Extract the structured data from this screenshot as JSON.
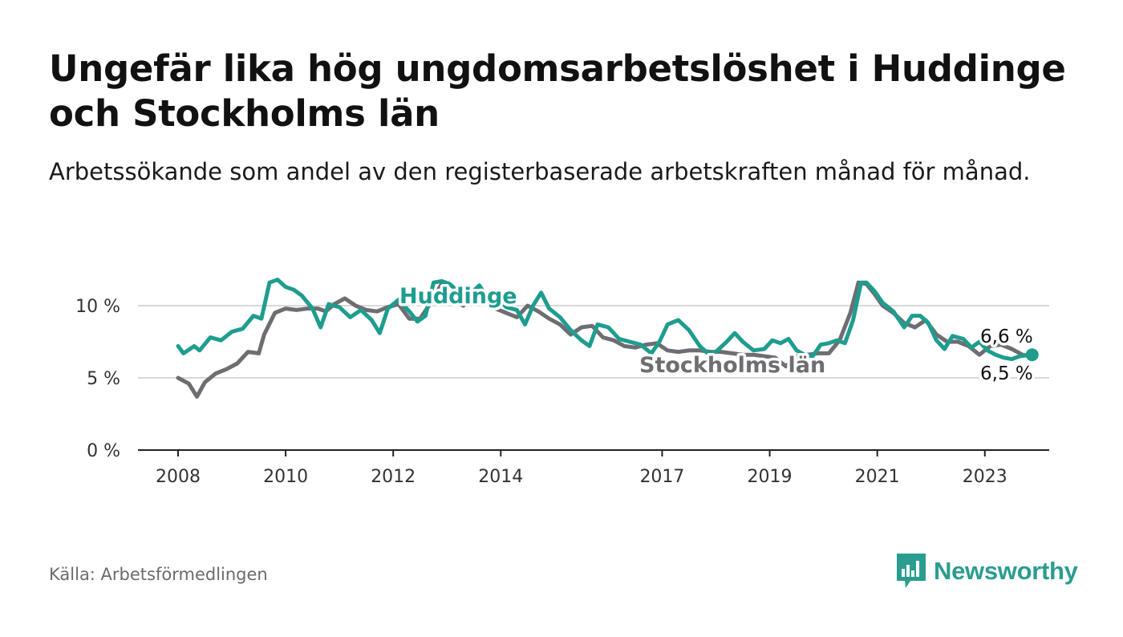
{
  "header": {
    "title": "Ungefär lika hög ungdomsarbetslöshet i Huddinge och Stockholms län",
    "subtitle": "Arbetssökande som andel av den registerbaserade arbetskraften månad för månad."
  },
  "footer": {
    "source": "Källa: Arbetsförmedlingen",
    "brand": "Newsworthy"
  },
  "colors": {
    "huddinge": "#1e9d8f",
    "stockholm": "#6e6d72",
    "grid": "#d9d9d9",
    "axis": "#222222"
  },
  "chart_data": {
    "type": "line",
    "title": "Ungefär lika hög ungdomsarbetslöshet i Huddinge och Stockholms län",
    "xlabel": "",
    "ylabel": "",
    "xlim": [
      2008,
      2024.2
    ],
    "ylim": [
      0,
      12.5
    ],
    "x_ticks": [
      {
        "value": 2008,
        "label": "2008"
      },
      {
        "value": 2010,
        "label": "2010"
      },
      {
        "value": 2012,
        "label": "2012"
      },
      {
        "value": 2014,
        "label": "2014"
      },
      {
        "value": 2017,
        "label": "2017"
      },
      {
        "value": 2019,
        "label": "2019"
      },
      {
        "value": 2021,
        "label": "2021"
      },
      {
        "value": 2023,
        "label": "2023"
      }
    ],
    "y_ticks": [
      {
        "value": 0,
        "label": "0 %"
      },
      {
        "value": 5,
        "label": "5 %"
      },
      {
        "value": 10,
        "label": "10 %"
      }
    ],
    "series": [
      {
        "name": "Stockholms län",
        "label": "Stockholms län",
        "end_label": "6,5 %",
        "points": [
          [
            2008.0,
            5.0
          ],
          [
            2008.2,
            4.6
          ],
          [
            2008.35,
            3.7
          ],
          [
            2008.5,
            4.7
          ],
          [
            2008.7,
            5.3
          ],
          [
            2008.9,
            5.6
          ],
          [
            2009.1,
            6.0
          ],
          [
            2009.3,
            6.8
          ],
          [
            2009.5,
            6.7
          ],
          [
            2009.6,
            8.0
          ],
          [
            2009.8,
            9.5
          ],
          [
            2010.0,
            9.8
          ],
          [
            2010.2,
            9.7
          ],
          [
            2010.4,
            9.8
          ],
          [
            2010.6,
            9.8
          ],
          [
            2010.75,
            9.6
          ],
          [
            2010.9,
            10.1
          ],
          [
            2011.1,
            10.5
          ],
          [
            2011.3,
            10.0
          ],
          [
            2011.5,
            9.7
          ],
          [
            2011.7,
            9.6
          ],
          [
            2011.9,
            9.9
          ],
          [
            2012.1,
            10.1
          ],
          [
            2012.3,
            9.1
          ],
          [
            2012.5,
            9.1
          ],
          [
            2012.7,
            10.2
          ],
          [
            2012.9,
            11.5
          ],
          [
            2013.1,
            10.5
          ],
          [
            2013.3,
            10.0
          ],
          [
            2013.5,
            10.5
          ],
          [
            2013.7,
            10.5
          ],
          [
            2013.9,
            9.8
          ],
          [
            2014.1,
            9.5
          ],
          [
            2014.3,
            9.2
          ],
          [
            2014.5,
            10.0
          ],
          [
            2014.7,
            9.6
          ],
          [
            2014.9,
            9.1
          ],
          [
            2015.1,
            8.7
          ],
          [
            2015.3,
            8.0
          ],
          [
            2015.5,
            8.5
          ],
          [
            2015.7,
            8.6
          ],
          [
            2015.9,
            7.8
          ],
          [
            2016.1,
            7.6
          ],
          [
            2016.3,
            7.2
          ],
          [
            2016.5,
            7.1
          ],
          [
            2016.7,
            7.3
          ],
          [
            2016.9,
            7.4
          ],
          [
            2017.1,
            6.9
          ],
          [
            2017.3,
            6.8
          ],
          [
            2017.5,
            6.9
          ],
          [
            2017.7,
            6.9
          ],
          [
            2017.9,
            6.8
          ],
          [
            2018.1,
            6.8
          ],
          [
            2018.3,
            6.7
          ],
          [
            2018.5,
            6.6
          ],
          [
            2018.7,
            6.6
          ],
          [
            2018.9,
            6.5
          ],
          [
            2019.1,
            6.4
          ],
          [
            2019.3,
            5.8
          ],
          [
            2019.5,
            6.5
          ],
          [
            2019.7,
            6.6
          ],
          [
            2019.9,
            6.7
          ],
          [
            2020.1,
            6.7
          ],
          [
            2020.3,
            7.6
          ],
          [
            2020.5,
            9.5
          ],
          [
            2020.65,
            11.6
          ],
          [
            2020.8,
            11.5
          ],
          [
            2020.95,
            10.8
          ],
          [
            2021.1,
            10.0
          ],
          [
            2021.3,
            9.5
          ],
          [
            2021.5,
            8.8
          ],
          [
            2021.7,
            8.5
          ],
          [
            2021.9,
            9.0
          ],
          [
            2022.1,
            8.0
          ],
          [
            2022.3,
            7.5
          ],
          [
            2022.5,
            7.5
          ],
          [
            2022.7,
            7.2
          ],
          [
            2022.9,
            6.6
          ],
          [
            2023.1,
            7.2
          ],
          [
            2023.3,
            7.3
          ],
          [
            2023.5,
            7.0
          ],
          [
            2023.7,
            6.6
          ],
          [
            2023.85,
            6.5
          ]
        ]
      },
      {
        "name": "Huddinge",
        "label": "Huddinge",
        "end_label": "6,6 %",
        "points": [
          [
            2008.0,
            7.2
          ],
          [
            2008.1,
            6.7
          ],
          [
            2008.3,
            7.2
          ],
          [
            2008.4,
            6.9
          ],
          [
            2008.6,
            7.8
          ],
          [
            2008.8,
            7.6
          ],
          [
            2009.0,
            8.2
          ],
          [
            2009.2,
            8.4
          ],
          [
            2009.4,
            9.3
          ],
          [
            2009.55,
            9.1
          ],
          [
            2009.7,
            11.6
          ],
          [
            2009.85,
            11.8
          ],
          [
            2010.0,
            11.3
          ],
          [
            2010.15,
            11.1
          ],
          [
            2010.3,
            10.7
          ],
          [
            2010.5,
            9.8
          ],
          [
            2010.65,
            8.5
          ],
          [
            2010.8,
            10.1
          ],
          [
            2011.0,
            9.9
          ],
          [
            2011.2,
            9.2
          ],
          [
            2011.4,
            9.7
          ],
          [
            2011.6,
            9.0
          ],
          [
            2011.75,
            8.1
          ],
          [
            2011.9,
            9.8
          ],
          [
            2012.1,
            10.4
          ],
          [
            2012.3,
            9.6
          ],
          [
            2012.45,
            8.9
          ],
          [
            2012.6,
            9.3
          ],
          [
            2012.75,
            11.6
          ],
          [
            2012.9,
            11.7
          ],
          [
            2013.05,
            11.5
          ],
          [
            2013.2,
            11.0
          ],
          [
            2013.4,
            10.7
          ],
          [
            2013.6,
            11.4
          ],
          [
            2013.8,
            10.3
          ],
          [
            2013.95,
            10.5
          ],
          [
            2014.1,
            9.9
          ],
          [
            2014.3,
            9.7
          ],
          [
            2014.45,
            8.7
          ],
          [
            2014.6,
            10.0
          ],
          [
            2014.75,
            10.9
          ],
          [
            2014.9,
            9.8
          ],
          [
            2015.1,
            9.2
          ],
          [
            2015.3,
            8.3
          ],
          [
            2015.5,
            7.6
          ],
          [
            2015.65,
            7.2
          ],
          [
            2015.8,
            8.7
          ],
          [
            2016.0,
            8.5
          ],
          [
            2016.2,
            7.7
          ],
          [
            2016.4,
            7.5
          ],
          [
            2016.6,
            7.3
          ],
          [
            2016.8,
            6.7
          ],
          [
            2016.95,
            7.5
          ],
          [
            2017.1,
            8.7
          ],
          [
            2017.3,
            9.0
          ],
          [
            2017.5,
            8.3
          ],
          [
            2017.7,
            7.2
          ],
          [
            2017.85,
            6.7
          ],
          [
            2018.0,
            6.8
          ],
          [
            2018.2,
            7.5
          ],
          [
            2018.35,
            8.1
          ],
          [
            2018.5,
            7.5
          ],
          [
            2018.7,
            6.9
          ],
          [
            2018.9,
            7.0
          ],
          [
            2019.05,
            7.6
          ],
          [
            2019.2,
            7.4
          ],
          [
            2019.35,
            7.7
          ],
          [
            2019.5,
            6.9
          ],
          [
            2019.65,
            6.6
          ],
          [
            2019.8,
            6.5
          ],
          [
            2019.95,
            7.3
          ],
          [
            2020.1,
            7.4
          ],
          [
            2020.25,
            7.6
          ],
          [
            2020.4,
            7.4
          ],
          [
            2020.55,
            9.0
          ],
          [
            2020.7,
            11.6
          ],
          [
            2020.8,
            11.6
          ],
          [
            2020.95,
            11.0
          ],
          [
            2021.1,
            10.2
          ],
          [
            2021.3,
            9.6
          ],
          [
            2021.5,
            8.5
          ],
          [
            2021.65,
            9.3
          ],
          [
            2021.8,
            9.3
          ],
          [
            2021.95,
            8.8
          ],
          [
            2022.1,
            7.6
          ],
          [
            2022.25,
            7.0
          ],
          [
            2022.4,
            7.9
          ],
          [
            2022.6,
            7.7
          ],
          [
            2022.75,
            7.1
          ],
          [
            2022.9,
            7.5
          ],
          [
            2023.05,
            6.9
          ],
          [
            2023.2,
            6.6
          ],
          [
            2023.35,
            6.4
          ],
          [
            2023.5,
            6.3
          ],
          [
            2023.65,
            6.5
          ],
          [
            2023.85,
            6.6
          ]
        ]
      }
    ]
  }
}
